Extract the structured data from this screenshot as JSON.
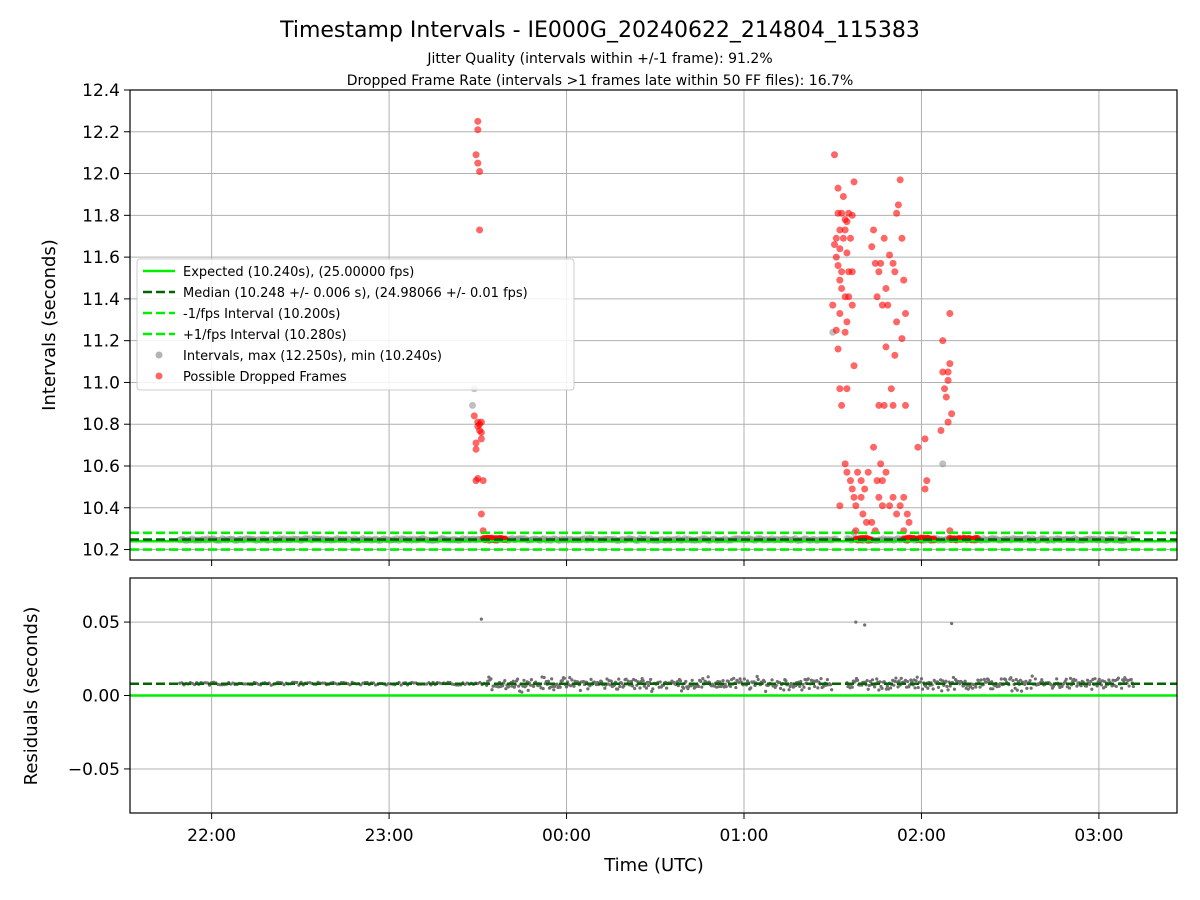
{
  "figure": {
    "title": "Timestamp Intervals - IE000G_20240622_214804_115383",
    "subtitle1": "Jitter Quality (intervals within +/-1 frame): 91.2%",
    "subtitle2": "Dropped Frame Rate (intervals >1 frames late within 50 FF files): 16.7%",
    "xlabel": "Time (UTC)"
  },
  "chart_data": [
    {
      "type": "scatter",
      "panel": "intervals",
      "ylabel": "Intervals (seconds)",
      "ylim": [
        10.15,
        12.4
      ],
      "xlim_hours": [
        21.54,
        27.44
      ],
      "x_unit": "hours UTC (values above 24 are after midnight)",
      "yticks": [
        "10.2",
        "10.4",
        "10.6",
        "10.8",
        "11.0",
        "11.2",
        "11.4",
        "11.6",
        "11.8",
        "12.0",
        "12.2",
        "12.4"
      ],
      "xticks": [
        "22:00",
        "23:00",
        "00:00",
        "01:00",
        "02:00",
        "03:00"
      ],
      "grid": true,
      "legend_position": "center-left",
      "lines": [
        {
          "name": "Expected (10.240s), (25.00000 fps)",
          "y": 10.24,
          "color": "#00ee00",
          "style": "solid"
        },
        {
          "name": "Median (10.248 +/- 0.006 s), (24.98066 +/- 0.01 fps)",
          "y": 10.248,
          "color": "#006400",
          "style": "dashed"
        },
        {
          "name": "-1/fps Interval (10.200s)",
          "y": 10.2,
          "color": "#00ee00",
          "style": "dashed"
        },
        {
          "name": "+1/fps Interval (10.280s)",
          "y": 10.28,
          "color": "#00ee00",
          "style": "dashed"
        }
      ],
      "scatter_series": [
        {
          "name": "Intervals, max (12.250s), min (10.240s)",
          "color": "#808080",
          "baseline_y": 10.248,
          "baseline_ranges_hours": [
            [
              21.82,
              23.55
            ],
            [
              23.55,
              25.52
            ],
            [
              25.58,
              27.2
            ]
          ],
          "points": [
            [
              23.48,
              10.97
            ],
            [
              23.47,
              10.89
            ],
            [
              25.5,
              11.24
            ],
            [
              26.12,
              10.61
            ],
            [
              25.62,
              10.28
            ]
          ]
        },
        {
          "name": "Possible Dropped Frames",
          "color": "#ff0000",
          "points": [
            [
              23.5,
              12.25
            ],
            [
              23.5,
              12.21
            ],
            [
              23.49,
              12.09
            ],
            [
              23.5,
              12.05
            ],
            [
              23.51,
              12.01
            ],
            [
              23.51,
              11.73
            ],
            [
              23.48,
              10.84
            ],
            [
              23.5,
              10.81
            ],
            [
              23.51,
              10.8
            ],
            [
              23.52,
              10.81
            ],
            [
              23.51,
              10.77
            ],
            [
              23.52,
              10.73
            ],
            [
              23.49,
              10.71
            ],
            [
              23.49,
              10.68
            ],
            [
              23.5,
              10.54
            ],
            [
              23.49,
              10.53
            ],
            [
              23.53,
              10.53
            ],
            [
              23.52,
              10.37
            ],
            [
              23.53,
              10.29
            ],
            [
              23.5,
              10.79
            ],
            [
              23.52,
              10.76
            ],
            [
              25.51,
              12.09
            ],
            [
              25.53,
              11.93
            ],
            [
              25.56,
              11.89
            ],
            [
              25.62,
              11.96
            ],
            [
              25.53,
              11.81
            ],
            [
              25.55,
              11.81
            ],
            [
              25.57,
              11.78
            ],
            [
              25.59,
              11.81
            ],
            [
              25.61,
              11.8
            ],
            [
              25.58,
              11.77
            ],
            [
              25.54,
              11.73
            ],
            [
              25.57,
              11.73
            ],
            [
              25.52,
              11.69
            ],
            [
              25.6,
              11.69
            ],
            [
              25.56,
              11.69
            ],
            [
              25.51,
              11.66
            ],
            [
              25.54,
              11.64
            ],
            [
              25.58,
              11.62
            ],
            [
              25.52,
              11.6
            ],
            [
              25.53,
              11.56
            ],
            [
              25.55,
              11.53
            ],
            [
              25.59,
              11.53
            ],
            [
              25.61,
              11.53
            ],
            [
              25.54,
              11.49
            ],
            [
              25.55,
              11.45
            ],
            [
              25.57,
              11.41
            ],
            [
              25.59,
              11.41
            ],
            [
              25.61,
              11.37
            ],
            [
              25.5,
              11.37
            ],
            [
              25.54,
              11.33
            ],
            [
              25.58,
              11.29
            ],
            [
              25.52,
              11.25
            ],
            [
              25.57,
              11.24
            ],
            [
              25.53,
              11.16
            ],
            [
              25.62,
              11.08
            ],
            [
              25.58,
              10.97
            ],
            [
              25.54,
              10.97
            ],
            [
              25.55,
              10.89
            ],
            [
              25.57,
              10.61
            ],
            [
              25.58,
              10.57
            ],
            [
              25.6,
              10.53
            ],
            [
              25.61,
              10.49
            ],
            [
              25.62,
              10.45
            ],
            [
              25.64,
              10.57
            ],
            [
              25.63,
              10.41
            ],
            [
              25.54,
              10.41
            ],
            [
              25.63,
              10.29
            ],
            [
              25.66,
              10.53
            ],
            [
              25.68,
              10.49
            ],
            [
              25.7,
              10.57
            ],
            [
              25.66,
              10.45
            ],
            [
              25.67,
              10.37
            ],
            [
              25.69,
              10.33
            ],
            [
              25.73,
              11.73
            ],
            [
              25.72,
              11.65
            ],
            [
              25.74,
              11.57
            ],
            [
              25.76,
              11.53
            ],
            [
              25.77,
              11.57
            ],
            [
              25.79,
              11.69
            ],
            [
              25.75,
              11.41
            ],
            [
              25.81,
              11.37
            ],
            [
              25.78,
              11.37
            ],
            [
              25.8,
              11.45
            ],
            [
              25.82,
              11.61
            ],
            [
              25.84,
              11.57
            ],
            [
              25.85,
              11.53
            ],
            [
              25.86,
              11.81
            ],
            [
              25.87,
              11.85
            ],
            [
              25.88,
              11.97
            ],
            [
              25.89,
              11.69
            ],
            [
              25.9,
              11.49
            ],
            [
              25.91,
              11.33
            ],
            [
              25.86,
              11.29
            ],
            [
              25.89,
              11.21
            ],
            [
              25.85,
              11.13
            ],
            [
              25.8,
              11.17
            ],
            [
              25.76,
              10.89
            ],
            [
              25.79,
              10.89
            ],
            [
              25.83,
              10.97
            ],
            [
              25.84,
              10.89
            ],
            [
              25.91,
              10.89
            ],
            [
              25.73,
              10.69
            ],
            [
              25.77,
              10.61
            ],
            [
              25.75,
              10.53
            ],
            [
              25.78,
              10.53
            ],
            [
              25.8,
              10.57
            ],
            [
              25.76,
              10.45
            ],
            [
              25.78,
              10.41
            ],
            [
              25.82,
              10.41
            ],
            [
              25.84,
              10.45
            ],
            [
              25.86,
              10.37
            ],
            [
              25.88,
              10.41
            ],
            [
              25.9,
              10.45
            ],
            [
              25.92,
              10.37
            ],
            [
              25.72,
              10.33
            ],
            [
              25.74,
              10.29
            ],
            [
              25.93,
              10.33
            ],
            [
              25.9,
              10.29
            ],
            [
              25.98,
              10.69
            ],
            [
              26.02,
              10.73
            ],
            [
              26.03,
              10.53
            ],
            [
              26.02,
              10.49
            ],
            [
              26.11,
              10.77
            ],
            [
              26.12,
              11.05
            ],
            [
              26.12,
              11.2
            ],
            [
              26.13,
              10.97
            ],
            [
              26.14,
              10.93
            ],
            [
              26.15,
              11.01
            ],
            [
              26.15,
              11.05
            ],
            [
              26.16,
              11.09
            ],
            [
              26.16,
              11.33
            ],
            [
              26.15,
              10.81
            ],
            [
              26.17,
              10.85
            ],
            [
              26.16,
              10.29
            ]
          ],
          "baseline_ranges_hours": [
            [
              23.53,
              23.66
            ],
            [
              25.63,
              25.72
            ],
            [
              25.9,
              26.08
            ],
            [
              26.16,
              26.32
            ]
          ],
          "baseline_y": 10.25
        }
      ]
    },
    {
      "type": "scatter",
      "panel": "residuals",
      "ylabel": "Residuals (seconds)",
      "ylim": [
        -0.08,
        0.08
      ],
      "xlim_hours": [
        21.54,
        27.44
      ],
      "yticks": [
        "−0.05",
        "0.00",
        "0.05"
      ],
      "xticks": [
        "22:00",
        "23:00",
        "00:00",
        "01:00",
        "02:00",
        "03:00"
      ],
      "grid": true,
      "lines": [
        {
          "name": "expected",
          "y": 0.0,
          "color": "#00ee00",
          "style": "solid"
        },
        {
          "name": "median",
          "y": 0.008,
          "color": "#006400",
          "style": "dashed"
        }
      ],
      "scatter_series": [
        {
          "name": "residuals",
          "color": "#707070",
          "quiet_range_hours": [
            21.82,
            23.55
          ],
          "quiet_level": 0.008,
          "noisy_ranges_hours": [
            [
              23.55,
              25.5
            ],
            [
              25.58,
              27.2
            ]
          ],
          "noisy_level": 0.008,
          "noisy_spread": 0.006,
          "outliers": [
            [
              23.52,
              0.052
            ],
            [
              25.63,
              0.05
            ],
            [
              25.68,
              0.048
            ],
            [
              26.17,
              0.049
            ]
          ]
        }
      ]
    }
  ]
}
